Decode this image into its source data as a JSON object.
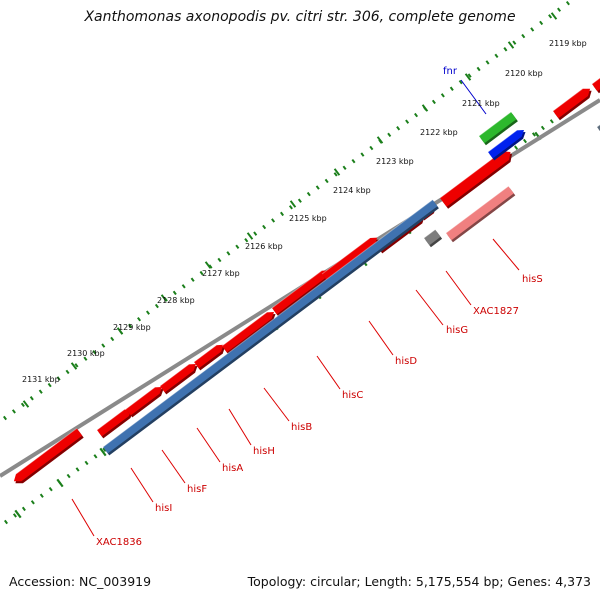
{
  "title": "Xanthomonas axonopodis pv. citri str. 306, complete genome",
  "footer": {
    "accession": "Accession: NC_003919",
    "stats": "Topology: circular; Length: 5,175,554 bp; Genes: 4,373"
  },
  "colors": {
    "forward_gene": "#ee0000",
    "reverse_gene": "#3f72b0",
    "fnr": "#2db82d",
    "fnr_reverse": "#0022ee",
    "hisS": "#f08080",
    "gray": "#7d7d7d",
    "backbone": "#8a8a8a",
    "ticks": "#1b7f1b",
    "label_line_red": "#dd0000",
    "label_line_blue": "#0000cc"
  },
  "scale_labels": [
    "2119 kbp",
    "2120 kbp",
    "2121 kbp",
    "2122 kbp",
    "2123 kbp",
    "2124 kbp",
    "2125 kbp",
    "2126 kbp",
    "2127 kbp",
    "2128 kbp",
    "2129 kbp",
    "2130 kbp",
    "2131 kbp"
  ],
  "gene_labels": [
    {
      "name": "fnr",
      "color": "#0000cc"
    },
    {
      "name": "hisS",
      "color": "#cc0000"
    },
    {
      "name": "XAC1827",
      "color": "#cc0000"
    },
    {
      "name": "hisG",
      "color": "#cc0000"
    },
    {
      "name": "hisD",
      "color": "#cc0000"
    },
    {
      "name": "hisC",
      "color": "#cc0000"
    },
    {
      "name": "hisB",
      "color": "#cc0000"
    },
    {
      "name": "hisH",
      "color": "#cc0000"
    },
    {
      "name": "hisA",
      "color": "#cc0000"
    },
    {
      "name": "hisF",
      "color": "#cc0000"
    },
    {
      "name": "hisI",
      "color": "#cc0000"
    },
    {
      "name": "XAC1836",
      "color": "#cc0000"
    }
  ]
}
